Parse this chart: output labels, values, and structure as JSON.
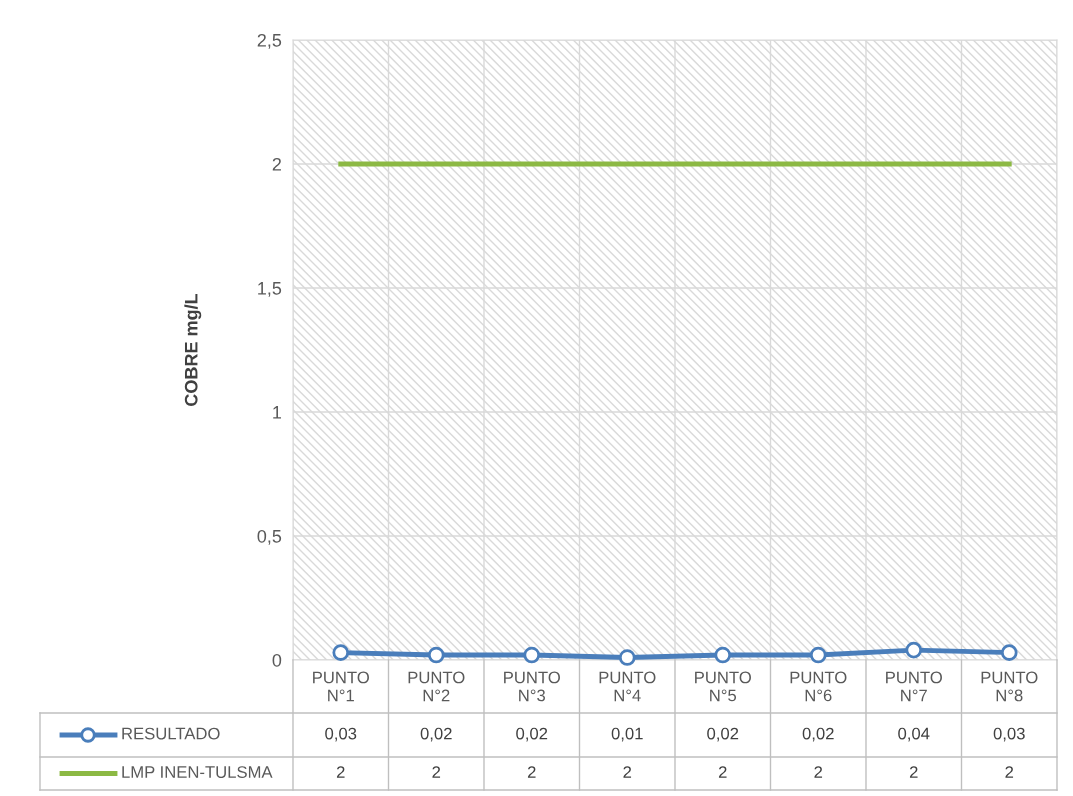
{
  "chart_data": {
    "type": "line",
    "ylabel": "COBRE mg/L",
    "categories": [
      "PUNTO\nN°1",
      "PUNTO\nN°2",
      "PUNTO\nN°3",
      "PUNTO\nN°4",
      "PUNTO\nN°5",
      "PUNTO\nN°6",
      "PUNTO\nN°7",
      "PUNTO\nN°8"
    ],
    "series": [
      {
        "name": "RESULTADO",
        "color": "#4a7ebb",
        "marker": "circle",
        "values": [
          0.03,
          0.02,
          0.02,
          0.01,
          0.02,
          0.02,
          0.04,
          0.03
        ],
        "value_labels": [
          "0,03",
          "0,02",
          "0,02",
          "0,01",
          "0,02",
          "0,02",
          "0,04",
          "0,03"
        ]
      },
      {
        "name": "LMP INEN-TULSMA",
        "color": "#8cb944",
        "marker": "none",
        "values": [
          2,
          2,
          2,
          2,
          2,
          2,
          2,
          2
        ],
        "value_labels": [
          "2",
          "2",
          "2",
          "2",
          "2",
          "2",
          "2",
          "2"
        ]
      }
    ],
    "ylim": [
      0,
      2.5
    ],
    "yticks": [
      0,
      {
        "value": 0.5,
        "label": "0,5"
      },
      1,
      {
        "value": 1.5,
        "label": "1,5"
      },
      2,
      {
        "value": 2.5,
        "label": "2,5"
      }
    ],
    "grid": true,
    "legend": "bottom",
    "line_style": "solid"
  }
}
